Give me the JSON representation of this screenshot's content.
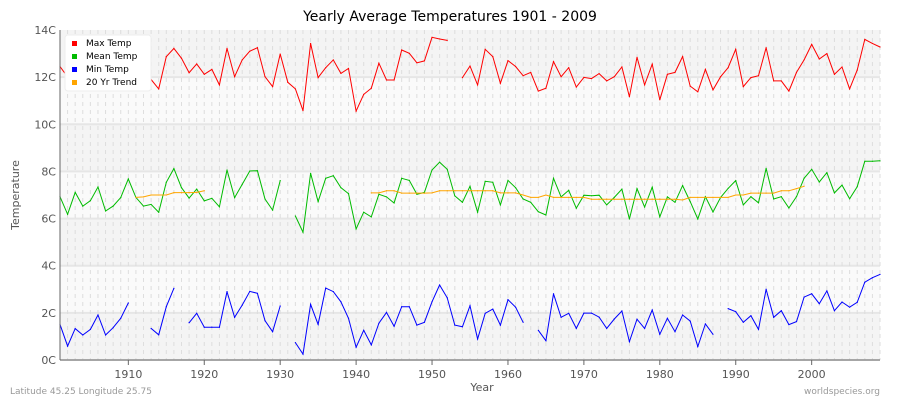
{
  "chart_data": {
    "type": "line",
    "title": "Yearly Average Temperatures 1901 - 2009",
    "xlabel": "Year",
    "ylabel": "Temperature",
    "xlim": [
      1901,
      2009
    ],
    "ylim": [
      0,
      14
    ],
    "x_ticks": [
      1910,
      1920,
      1930,
      1940,
      1950,
      1960,
      1970,
      1980,
      1990,
      2000
    ],
    "y_ticks": [
      {
        "v": 0,
        "label": "0C"
      },
      {
        "v": 2,
        "label": "2C"
      },
      {
        "v": 4,
        "label": "4C"
      },
      {
        "v": 6,
        "label": "6C"
      },
      {
        "v": 8,
        "label": "8C"
      },
      {
        "v": 10,
        "label": "10C"
      },
      {
        "v": 12,
        "label": "12C"
      },
      {
        "v": 14,
        "label": "14C"
      }
    ],
    "grid": true,
    "legend_position": "top-left",
    "x_start": 1901,
    "series": [
      {
        "name": "Max Temp",
        "color": "#ff0000",
        "values": [
          12.45,
          12.0,
          null,
          null,
          null,
          null,
          null,
          null,
          null,
          null,
          null,
          null,
          11.9,
          11.5,
          12.87,
          13.22,
          12.8,
          12.19,
          12.56,
          12.12,
          12.33,
          11.67,
          13.22,
          12.02,
          12.73,
          13.1,
          13.25,
          12.02,
          11.6,
          12.98,
          11.78,
          11.5,
          10.58,
          13.43,
          11.98,
          12.4,
          12.73,
          12.16,
          12.37,
          10.56,
          11.27,
          11.53,
          12.59,
          11.88,
          11.88,
          13.15,
          13.01,
          12.61,
          12.69,
          13.69,
          13.62,
          13.56,
          null,
          11.98,
          12.47,
          11.67,
          13.18,
          12.87,
          11.74,
          12.7,
          12.45,
          12.06,
          12.2,
          11.41,
          11.53,
          12.66,
          12.02,
          12.4,
          11.58,
          11.99,
          11.94,
          12.15,
          11.84,
          12.02,
          12.43,
          11.17,
          12.84,
          11.67,
          12.55,
          11.04,
          12.12,
          12.2,
          12.87,
          11.62,
          11.38,
          12.33,
          11.46,
          12.02,
          12.4,
          13.18,
          11.6,
          11.98,
          12.06,
          13.25,
          11.84,
          11.84,
          11.41,
          12.2,
          12.73,
          13.39,
          12.77,
          13.0,
          12.12,
          12.43,
          11.5,
          12.3,
          13.6,
          13.43,
          13.28
        ]
      },
      {
        "name": "Mean Temp",
        "color": "#00bb00",
        "values": [
          6.93,
          6.18,
          7.11,
          6.53,
          6.76,
          7.34,
          6.32,
          6.53,
          6.89,
          7.68,
          6.9,
          6.53,
          6.6,
          6.27,
          7.54,
          8.12,
          7.31,
          6.87,
          7.25,
          6.75,
          6.86,
          6.5,
          8.06,
          6.89,
          7.45,
          8.02,
          8.03,
          6.83,
          6.36,
          7.61,
          null,
          6.11,
          5.42,
          7.92,
          6.72,
          7.71,
          7.82,
          7.31,
          7.06,
          5.56,
          6.27,
          6.07,
          7.03,
          6.92,
          6.66,
          7.71,
          7.62,
          7.03,
          7.11,
          8.06,
          8.39,
          8.09,
          6.96,
          6.69,
          7.37,
          6.27,
          7.58,
          7.54,
          6.58,
          7.62,
          7.31,
          6.83,
          6.69,
          6.29,
          6.15,
          7.71,
          6.92,
          7.2,
          6.44,
          6.99,
          6.97,
          6.99,
          6.58,
          6.9,
          7.25,
          5.98,
          7.27,
          6.49,
          7.33,
          6.07,
          6.92,
          6.69,
          7.4,
          6.72,
          5.98,
          6.93,
          6.28,
          6.9,
          7.28,
          7.61,
          6.58,
          6.93,
          6.67,
          8.13,
          6.83,
          6.93,
          6.45,
          6.93,
          7.71,
          8.09,
          7.55,
          7.95,
          7.09,
          7.42,
          6.84,
          7.35,
          8.43,
          8.43,
          8.45
        ]
      },
      {
        "name": "Min Temp",
        "color": "#0000ff",
        "values": [
          1.51,
          0.59,
          1.33,
          1.06,
          1.3,
          1.91,
          1.06,
          1.37,
          1.77,
          2.42,
          null,
          null,
          1.34,
          1.07,
          2.26,
          3.04,
          null,
          1.58,
          1.98,
          1.39,
          1.39,
          1.39,
          2.9,
          1.81,
          2.33,
          2.91,
          2.83,
          1.67,
          1.2,
          2.29,
          null,
          0.74,
          0.25,
          2.36,
          1.51,
          3.05,
          2.9,
          2.47,
          1.77,
          0.54,
          1.26,
          0.64,
          1.56,
          2.02,
          1.43,
          2.26,
          2.26,
          1.48,
          1.6,
          2.47,
          3.18,
          2.64,
          1.48,
          1.41,
          2.3,
          0.89,
          1.98,
          2.16,
          1.48,
          2.56,
          2.24,
          1.6,
          null,
          1.26,
          0.82,
          2.81,
          1.81,
          1.98,
          1.34,
          1.99,
          1.99,
          1.82,
          1.34,
          1.74,
          2.08,
          0.78,
          1.73,
          1.34,
          2.12,
          1.09,
          1.77,
          1.2,
          1.91,
          1.65,
          0.57,
          1.53,
          1.09,
          null,
          2.18,
          2.05,
          1.6,
          1.88,
          1.3,
          3.0,
          1.81,
          2.09,
          1.5,
          1.63,
          2.67,
          2.81,
          2.39,
          2.93,
          2.09,
          2.46,
          2.24,
          2.45,
          3.3,
          3.49,
          3.63
        ]
      },
      {
        "name": "20 Yr Trend",
        "color": "#ffa500",
        "values": [
          null,
          null,
          null,
          null,
          null,
          null,
          null,
          null,
          null,
          null,
          6.9,
          6.92,
          7.0,
          7.0,
          7.0,
          7.1,
          7.1,
          7.1,
          7.11,
          7.18,
          null,
          null,
          null,
          null,
          null,
          null,
          null,
          null,
          null,
          null,
          null,
          null,
          null,
          null,
          null,
          null,
          null,
          null,
          null,
          null,
          null,
          7.09,
          7.09,
          7.18,
          7.18,
          7.08,
          7.08,
          7.08,
          7.08,
          7.09,
          7.18,
          7.18,
          7.18,
          7.18,
          7.18,
          7.18,
          7.18,
          7.18,
          7.09,
          7.09,
          7.09,
          7.0,
          6.9,
          6.9,
          7.0,
          6.9,
          6.9,
          6.9,
          6.9,
          6.9,
          6.82,
          6.82,
          6.82,
          6.82,
          6.82,
          6.82,
          6.82,
          6.82,
          6.82,
          6.82,
          6.82,
          6.82,
          6.79,
          6.9,
          6.9,
          6.9,
          6.9,
          6.9,
          6.9,
          7.0,
          7.0,
          7.08,
          7.08,
          7.08,
          7.08,
          7.18,
          7.18,
          7.27,
          7.37,
          null,
          null,
          null,
          null,
          null,
          null,
          null,
          null,
          null,
          null
        ]
      }
    ]
  },
  "footer": {
    "location": "Latitude 45.25 Longitude 25.75",
    "source": "worldspecies.org"
  }
}
